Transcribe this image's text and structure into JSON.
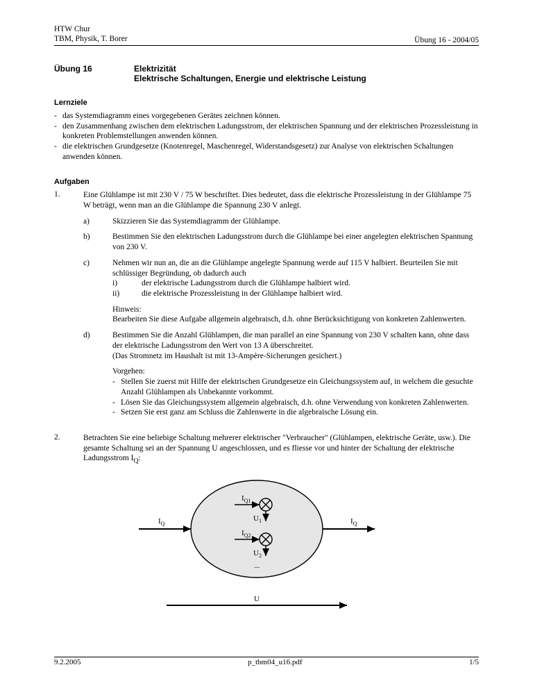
{
  "header": {
    "line1": "HTW Chur",
    "line2": "TBM, Physik, T. Borer",
    "right": "Übung 16 - 2004/05"
  },
  "title": {
    "label": "Übung 16",
    "main1": "Elektrizität",
    "main2": "Elektrische Schaltungen, Energie und elektrische Leistung"
  },
  "lernziele": {
    "heading": "Lernziele",
    "items": [
      "das Systemdiagramm eines vorgegebenen Gerätes zeichnen können.",
      "den Zusammenhang zwischen dem elektrischen Ladungsstrom, der elektrischen Spannung und der elektrischen Prozessleistung in konkreten Problemstellungen anwenden können.",
      "die elektrischen Grundgesetze (Knotenregel, Maschenregel, Widerstandsgesetz) zur Analyse von elektrischen Schaltungen anwenden können."
    ]
  },
  "aufgaben": {
    "heading": "Aufgaben",
    "task1": {
      "num": "1.",
      "intro": "Eine Glühlampe ist mit 230 V / 75 W beschriftet. Dies bedeutet, dass die elektrische Prozessleistung in der Glühlampe 75 W beträgt, wenn man an die Glühlampe die Spannung 230 V anlegt.",
      "a": {
        "label": "a)",
        "text": "Skizzieren Sie das Systemdiagramm der Glühlampe."
      },
      "b": {
        "label": "b)",
        "text": "Bestimmen Sie den elektrischen Ladungsstrom durch die Glühlampe bei einer angelegten elektrischen Spannung von 230 V."
      },
      "c": {
        "label": "c)",
        "line1": "Nehmen wir nun an, die an die Glühlampe angelegte Spannung werde auf 115 V halbiert. Beurteilen Sie mit schlüssiger Begründung, ob dadurch auch",
        "i": "der elektrische Ladungsstrom durch die Glühlampe halbiert wird.",
        "ii": "die elektrische Prozessleistung in der Glühlampe halbiert wird.",
        "hinweis_label": "Hinweis:",
        "hinweis": "Bearbeiten Sie diese Aufgabe allgemein algebraisch, d.h. ohne Berücksichtigung von konkreten Zahlenwerten."
      },
      "d": {
        "label": "d)",
        "text": "Bestimmen Sie die Anzahl Glühlampen, die man parallel an eine Spannung von 230 V schalten kann, ohne dass der elektrische Ladungsstrom den Wert von 13 A überschreitet.",
        "paren": "(Das Stromnetz im Haushalt ist mit 13-Ampère-Sicherungen gesichert.)",
        "vorgehen_label": "Vorgehen:",
        "v1": "Stellen Sie zuerst mit Hilfe der elektrischen Grundgesetze ein Gleichungssystem auf, in welchem die gesuchte Anzahl Glühlampen als Unbekannte vorkommt.",
        "v2": "Lösen Sie das Gleichungssystem allgemein algebraisch, d.h. ohne Verwendung von konkreten Zahlenwerten.",
        "v3": "Setzen Sie erst ganz am Schluss die Zahlenwerte in die algebraische Lösung ein."
      }
    },
    "task2": {
      "num": "2.",
      "text_pre": "Betrachten Sie eine beliebige Schaltung mehrerer elektrischer \"Verbraucher\" (Glühlampen, elektrische Geräte, usw.). Die gesamte Schaltung sei an der Spannung U angeschlossen, und es fliesse vor und hinter der Schaltung der elektrische Ladungsstrom I",
      "text_sub": "Q",
      "text_post": ":"
    }
  },
  "figure": {
    "type": "circuit-diagram",
    "background_color": "#ffffff",
    "ellipse_fill": "#e6e6e6",
    "stroke_color": "#000000",
    "stroke_width": 1.4,
    "arrow_width": 2,
    "font_size": 11,
    "labels": {
      "IQ_left": "I",
      "IQ_left_sub": "Q",
      "IQ_right": "I",
      "IQ_right_sub": "Q",
      "IQ1": "I",
      "IQ1_sub": "Q1",
      "U1": "U",
      "U1_sub": "1",
      "IQ2": "I",
      "IQ2_sub": "Q2",
      "U2": "U",
      "U2_sub": "2",
      "dots": "...",
      "U_bottom": "U"
    }
  },
  "footer": {
    "left": "9.2.2005",
    "center": "p_tbm04_u16.pdf",
    "right": "1/5"
  }
}
